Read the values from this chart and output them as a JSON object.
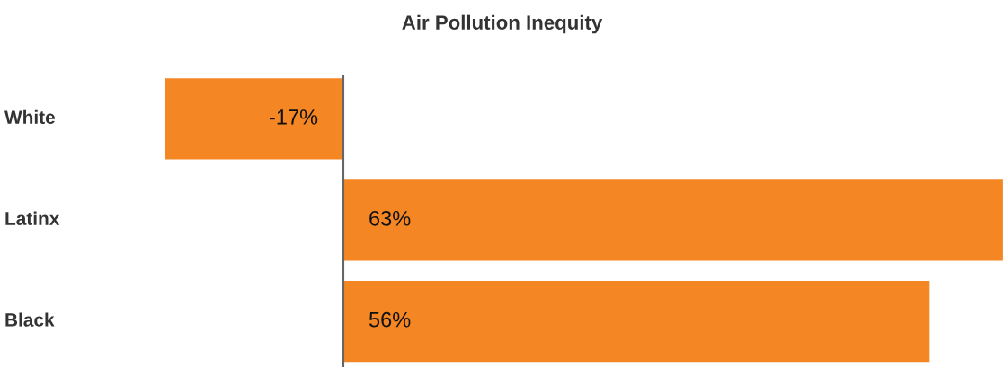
{
  "chart_data": {
    "type": "bar",
    "orientation": "horizontal",
    "title": "Air Pollution Inequity",
    "categories": [
      "White",
      "Latinx",
      "Black"
    ],
    "values": [
      -17,
      63,
      56
    ],
    "value_labels": [
      "-17%",
      "63%",
      "56%"
    ],
    "color": "#f58624"
  }
}
